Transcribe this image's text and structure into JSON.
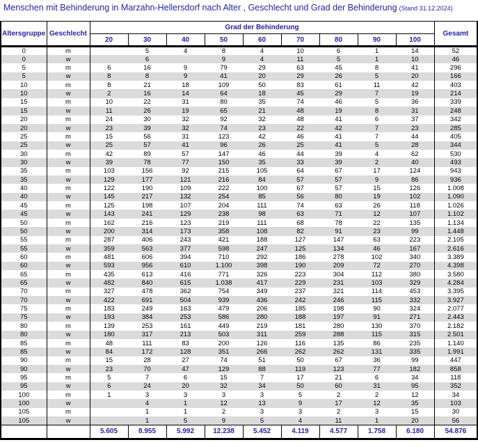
{
  "title": "Menschen mit Behinderung in Marzahn-Hellersdorf nach Alter , Geschlecht und Grad der Behinderung",
  "title_suffix": "(Stand 31.12.2024)",
  "colors": {
    "accent": "#2424A3",
    "stripe": "#DBDBDB",
    "grid": "#000000"
  },
  "header": {
    "age_label": "Altersgruppe",
    "gender_label": "Geschlecht",
    "group_label": "Grad der Behinderung",
    "total_label": "Gesamt",
    "degrees": [
      "20",
      "30",
      "40",
      "50",
      "60",
      "70",
      "80",
      "90",
      "100"
    ]
  },
  "rows": [
    {
      "age": "0",
      "gender": "m",
      "values": [
        "",
        "5",
        "4",
        "8",
        "4",
        "10",
        "6",
        "1",
        "14"
      ],
      "total": "52"
    },
    {
      "age": "0",
      "gender": "w",
      "values": [
        "",
        "6",
        "",
        "9",
        "4",
        "11",
        "5",
        "1",
        "10"
      ],
      "total": "46"
    },
    {
      "age": "5",
      "gender": "m",
      "values": [
        "6",
        "16",
        "9",
        "79",
        "29",
        "63",
        "45",
        "8",
        "41"
      ],
      "total": "296"
    },
    {
      "age": "5",
      "gender": "w",
      "values": [
        "8",
        "8",
        "9",
        "41",
        "20",
        "29",
        "26",
        "5",
        "20"
      ],
      "total": "166"
    },
    {
      "age": "10",
      "gender": "m",
      "values": [
        "8",
        "21",
        "18",
        "109",
        "50",
        "83",
        "61",
        "11",
        "42"
      ],
      "total": "403"
    },
    {
      "age": "10",
      "gender": "w",
      "values": [
        "2",
        "16",
        "14",
        "64",
        "18",
        "45",
        "29",
        "7",
        "19"
      ],
      "total": "214"
    },
    {
      "age": "15",
      "gender": "m",
      "values": [
        "10",
        "22",
        "31",
        "80",
        "35",
        "74",
        "46",
        "5",
        "36"
      ],
      "total": "339"
    },
    {
      "age": "15",
      "gender": "w",
      "values": [
        "11",
        "26",
        "19",
        "65",
        "21",
        "48",
        "19",
        "8",
        "31"
      ],
      "total": "248"
    },
    {
      "age": "20",
      "gender": "m",
      "values": [
        "24",
        "30",
        "32",
        "92",
        "32",
        "48",
        "41",
        "6",
        "37"
      ],
      "total": "342"
    },
    {
      "age": "20",
      "gender": "w",
      "values": [
        "23",
        "39",
        "32",
        "74",
        "23",
        "22",
        "42",
        "7",
        "23"
      ],
      "total": "285"
    },
    {
      "age": "25",
      "gender": "m",
      "values": [
        "15",
        "56",
        "31",
        "123",
        "42",
        "46",
        "41",
        "7",
        "44"
      ],
      "total": "405"
    },
    {
      "age": "25",
      "gender": "w",
      "values": [
        "25",
        "57",
        "41",
        "96",
        "26",
        "25",
        "41",
        "5",
        "28"
      ],
      "total": "344"
    },
    {
      "age": "30",
      "gender": "m",
      "values": [
        "42",
        "89",
        "57",
        "147",
        "46",
        "44",
        "39",
        "4",
        "62"
      ],
      "total": "530"
    },
    {
      "age": "30",
      "gender": "w",
      "values": [
        "39",
        "78",
        "77",
        "150",
        "35",
        "33",
        "39",
        "2",
        "40"
      ],
      "total": "493"
    },
    {
      "age": "35",
      "gender": "m",
      "values": [
        "103",
        "156",
        "92",
        "215",
        "105",
        "64",
        "67",
        "17",
        "124"
      ],
      "total": "943"
    },
    {
      "age": "35",
      "gender": "w",
      "values": [
        "129",
        "177",
        "121",
        "216",
        "84",
        "57",
        "57",
        "9",
        "86"
      ],
      "total": "936"
    },
    {
      "age": "40",
      "gender": "m",
      "values": [
        "122",
        "190",
        "109",
        "222",
        "100",
        "67",
        "57",
        "15",
        "126"
      ],
      "total": "1.008"
    },
    {
      "age": "40",
      "gender": "w",
      "values": [
        "145",
        "217",
        "132",
        "254",
        "85",
        "56",
        "80",
        "19",
        "102"
      ],
      "total": "1.090"
    },
    {
      "age": "45",
      "gender": "m",
      "values": [
        "125",
        "198",
        "107",
        "204",
        "111",
        "74",
        "63",
        "26",
        "118"
      ],
      "total": "1.026"
    },
    {
      "age": "45",
      "gender": "w",
      "values": [
        "143",
        "241",
        "129",
        "238",
        "98",
        "63",
        "71",
        "12",
        "107"
      ],
      "total": "1.102"
    },
    {
      "age": "50",
      "gender": "m",
      "values": [
        "162",
        "216",
        "123",
        "219",
        "111",
        "68",
        "78",
        "22",
        "135"
      ],
      "total": "1.134"
    },
    {
      "age": "50",
      "gender": "w",
      "values": [
        "200",
        "314",
        "173",
        "358",
        "108",
        "82",
        "91",
        "23",
        "99"
      ],
      "total": "1.448"
    },
    {
      "age": "55",
      "gender": "m",
      "values": [
        "287",
        "406",
        "243",
        "421",
        "188",
        "127",
        "147",
        "63",
        "223"
      ],
      "total": "2.105"
    },
    {
      "age": "55",
      "gender": "w",
      "values": [
        "359",
        "563",
        "377",
        "598",
        "247",
        "125",
        "134",
        "46",
        "167"
      ],
      "total": "2.616"
    },
    {
      "age": "60",
      "gender": "m",
      "values": [
        "481",
        "606",
        "394",
        "710",
        "292",
        "186",
        "278",
        "102",
        "340"
      ],
      "total": "3.389"
    },
    {
      "age": "60",
      "gender": "w",
      "values": [
        "593",
        "956",
        "610",
        "1.100",
        "398",
        "190",
        "209",
        "72",
        "270"
      ],
      "total": "4.398"
    },
    {
      "age": "65",
      "gender": "m",
      "values": [
        "435",
        "613",
        "416",
        "771",
        "326",
        "223",
        "304",
        "112",
        "380"
      ],
      "total": "3.580"
    },
    {
      "age": "65",
      "gender": "w",
      "values": [
        "482",
        "840",
        "615",
        "1.038",
        "417",
        "229",
        "231",
        "103",
        "329"
      ],
      "total": "4.284"
    },
    {
      "age": "70",
      "gender": "m",
      "values": [
        "327",
        "478",
        "362",
        "754",
        "349",
        "237",
        "321",
        "114",
        "453"
      ],
      "total": "3.395"
    },
    {
      "age": "70",
      "gender": "w",
      "values": [
        "422",
        "691",
        "504",
        "939",
        "436",
        "242",
        "246",
        "115",
        "332"
      ],
      "total": "3.927"
    },
    {
      "age": "75",
      "gender": "m",
      "values": [
        "183",
        "249",
        "163",
        "479",
        "206",
        "185",
        "198",
        "90",
        "324"
      ],
      "total": "2.077"
    },
    {
      "age": "75",
      "gender": "w",
      "values": [
        "193",
        "384",
        "253",
        "586",
        "280",
        "188",
        "197",
        "91",
        "271"
      ],
      "total": "2.443"
    },
    {
      "age": "80",
      "gender": "m",
      "values": [
        "139",
        "253",
        "161",
        "449",
        "219",
        "181",
        "280",
        "130",
        "370"
      ],
      "total": "2.182"
    },
    {
      "age": "80",
      "gender": "w",
      "values": [
        "180",
        "317",
        "213",
        "503",
        "311",
        "259",
        "288",
        "115",
        "315"
      ],
      "total": "2.501"
    },
    {
      "age": "85",
      "gender": "m",
      "values": [
        "48",
        "111",
        "83",
        "200",
        "126",
        "116",
        "135",
        "86",
        "235"
      ],
      "total": "1.140"
    },
    {
      "age": "85",
      "gender": "w",
      "values": [
        "84",
        "172",
        "128",
        "351",
        "266",
        "262",
        "262",
        "131",
        "335"
      ],
      "total": "1.991"
    },
    {
      "age": "90",
      "gender": "m",
      "values": [
        "15",
        "28",
        "27",
        "74",
        "51",
        "50",
        "67",
        "36",
        "99"
      ],
      "total": "447"
    },
    {
      "age": "90",
      "gender": "w",
      "values": [
        "23",
        "70",
        "47",
        "129",
        "88",
        "119",
        "123",
        "77",
        "182"
      ],
      "total": "858"
    },
    {
      "age": "95",
      "gender": "m",
      "values": [
        "5",
        "7",
        "6",
        "15",
        "7",
        "17",
        "21",
        "6",
        "34"
      ],
      "total": "118"
    },
    {
      "age": "95",
      "gender": "w",
      "values": [
        "6",
        "24",
        "20",
        "32",
        "34",
        "50",
        "60",
        "31",
        "95"
      ],
      "total": "352"
    },
    {
      "age": "100",
      "gender": "m",
      "values": [
        "1",
        "3",
        "3",
        "3",
        "3",
        "5",
        "2",
        "2",
        "12"
      ],
      "total": "34"
    },
    {
      "age": "100",
      "gender": "w",
      "values": [
        "",
        "4",
        "1",
        "12",
        "13",
        "9",
        "17",
        "12",
        "35"
      ],
      "total": "103"
    },
    {
      "age": "105",
      "gender": "m",
      "values": [
        "",
        "1",
        "1",
        "2",
        "3",
        "3",
        "2",
        "3",
        "15"
      ],
      "total": "30"
    },
    {
      "age": "105",
      "gender": "w",
      "values": [
        "",
        "1",
        "5",
        "9",
        "5",
        "4",
        "11",
        "1",
        "20"
      ],
      "total": "56"
    }
  ],
  "totals": {
    "values": [
      "5.605",
      "8.955",
      "5.992",
      "12.238",
      "5.452",
      "4.119",
      "4.577",
      "1.758",
      "6.180"
    ],
    "total": "54.876"
  }
}
